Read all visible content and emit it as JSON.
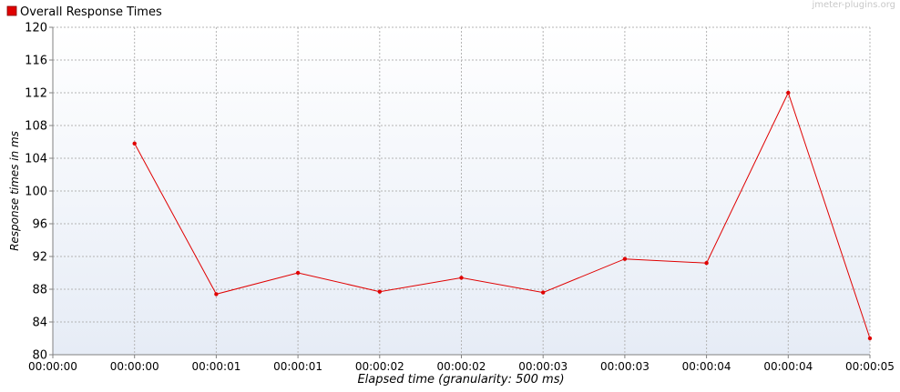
{
  "watermark": "jmeter-plugins.org",
  "chart_data": {
    "type": "line",
    "legend_position": "top-left",
    "grid": true,
    "title": "",
    "xlabel": "Elapsed time (granularity: 500 ms)",
    "ylabel": "Response times in ms",
    "ylim": [
      80,
      120
    ],
    "yticks": [
      80,
      84,
      88,
      92,
      96,
      100,
      104,
      108,
      112,
      116,
      120
    ],
    "x_tick_labels": [
      "00:00:00",
      "00:00:00",
      "00:00:01",
      "00:00:01",
      "00:00:02",
      "00:00:02",
      "00:00:03",
      "00:00:03",
      "00:00:04",
      "00:00:04",
      "00:00:05"
    ],
    "series": [
      {
        "name": "Overall Response Times",
        "color": "#e00000",
        "x_index": [
          1,
          2,
          3,
          4,
          5,
          6,
          7,
          8,
          9,
          10
        ],
        "values": [
          105.8,
          87.4,
          90.0,
          87.7,
          89.4,
          87.6,
          91.7,
          91.2,
          112.0,
          82.0
        ]
      }
    ]
  }
}
